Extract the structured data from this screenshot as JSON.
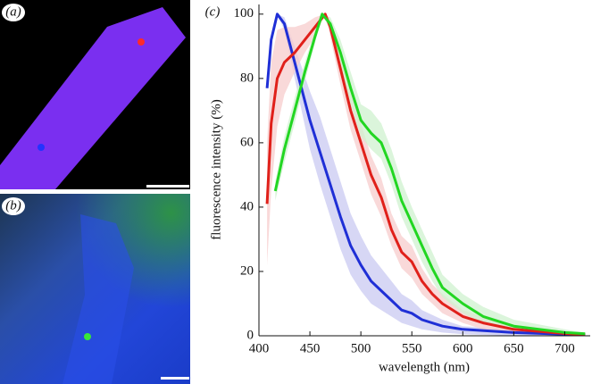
{
  "panels": {
    "a": "(a)",
    "b": "(b)"
  },
  "chart_data": {
    "type": "line",
    "panel_label": "(c)",
    "x_label": "wavelength (nm)",
    "y_label": "fluorescence intensity (%)",
    "xlim": [
      400,
      725
    ],
    "ylim": [
      0,
      103
    ],
    "xticks": [
      400,
      450,
      500,
      550,
      600,
      650,
      700
    ],
    "yticks": [
      0,
      20,
      40,
      60,
      80,
      100
    ],
    "series": [
      {
        "color": "#1f2fd6",
        "band_color": "#c9c9f2",
        "x": [
          408,
          412,
          418,
          425,
          435,
          450,
          460,
          470,
          480,
          490,
          500,
          510,
          520,
          530,
          540,
          550,
          560,
          580,
          600,
          650,
          700,
          720
        ],
        "values": [
          77,
          92,
          100,
          97,
          85,
          67,
          57,
          47,
          37,
          28,
          22,
          17,
          14,
          11,
          8,
          7,
          5,
          3,
          2,
          1,
          0.5,
          0.3
        ],
        "lower": [
          77,
          92,
          100,
          95,
          80,
          58,
          47,
          37,
          27,
          19,
          14,
          10,
          8,
          6,
          4,
          3,
          2,
          1,
          0.5,
          0,
          0,
          0
        ],
        "upper": [
          77,
          92,
          100,
          99,
          90,
          76,
          68,
          58,
          48,
          38,
          31,
          25,
          21,
          17,
          13,
          11,
          8,
          5,
          3,
          2,
          1,
          0.5
        ]
      },
      {
        "color": "#e0201a",
        "band_color": "#f7cccc",
        "x": [
          408,
          412,
          418,
          425,
          435,
          445,
          455,
          465,
          470,
          480,
          490,
          500,
          510,
          520,
          530,
          540,
          550,
          560,
          570,
          580,
          600,
          620,
          650,
          700,
          720
        ],
        "values": [
          41,
          66,
          80,
          85,
          88,
          92,
          96,
          100,
          96,
          83,
          70,
          60,
          50,
          43,
          33,
          26,
          23,
          17,
          13,
          10,
          6,
          4,
          2,
          0.7,
          0.4
        ],
        "lower": [
          22,
          45,
          65,
          75,
          82,
          88,
          93,
          100,
          93,
          78,
          64,
          54,
          44,
          37,
          28,
          21,
          18,
          13,
          10,
          7,
          4,
          2,
          1,
          0.3,
          0.2
        ],
        "upper": [
          60,
          85,
          95,
          96,
          96,
          97,
          99,
          100,
          98,
          88,
          76,
          66,
          56,
          49,
          38,
          31,
          28,
          21,
          16,
          13,
          8,
          6,
          3,
          1,
          0.6
        ]
      },
      {
        "color": "#22d622",
        "band_color": "#cff2cf",
        "x": [
          416,
          425,
          435,
          445,
          455,
          462,
          470,
          480,
          490,
          500,
          510,
          520,
          530,
          540,
          550,
          560,
          570,
          580,
          600,
          620,
          650,
          700,
          720
        ],
        "values": [
          45,
          58,
          70,
          82,
          93,
          100,
          97,
          88,
          77,
          67,
          63,
          60,
          52,
          42,
          35,
          28,
          21,
          15,
          10,
          6,
          3,
          1,
          0.6
        ],
        "lower": [
          42,
          54,
          66,
          79,
          91,
          100,
          95,
          84,
          72,
          62,
          58,
          55,
          47,
          37,
          30,
          23,
          17,
          12,
          7,
          4,
          2,
          0.5,
          0.3
        ],
        "upper": [
          48,
          62,
          74,
          85,
          95,
          100,
          99,
          92,
          82,
          72,
          70,
          66,
          58,
          48,
          40,
          33,
          26,
          19,
          13,
          9,
          5,
          2,
          1
        ]
      }
    ]
  }
}
